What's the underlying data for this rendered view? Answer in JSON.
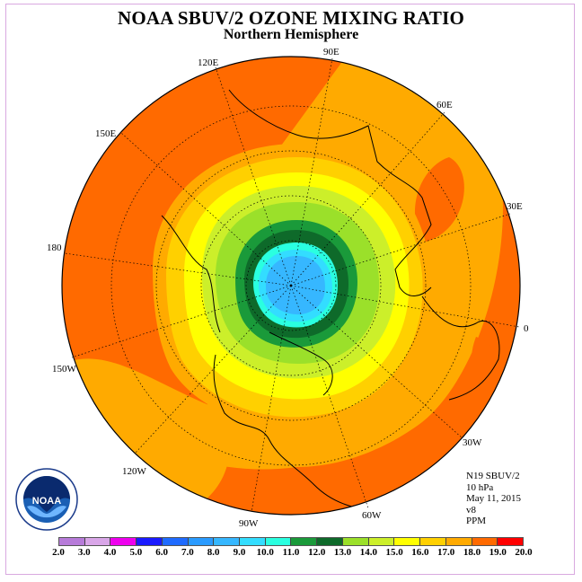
{
  "title": "NOAA SBUV/2 OZONE MIXING RATIO",
  "subtitle": "Northern Hemisphere",
  "longitude_labels": {
    "90E": "90E",
    "60E": "60E",
    "30E": "30E",
    "0": "0",
    "30W": "30W",
    "60W": "60W",
    "90W": "90W",
    "120W": "120W",
    "150W": "150W",
    "180": "180",
    "150E": "150E",
    "120E": "120E"
  },
  "info": {
    "satellite": "N19 SBUV/2",
    "level": "10 hPa",
    "date": "May 11, 2015",
    "version": "v8",
    "units": "PPM"
  },
  "logo": {
    "name": "noaa-logo",
    "text": "NOAA"
  },
  "colorbar": {
    "ticks": [
      "2.0",
      "3.0",
      "4.0",
      "5.0",
      "6.0",
      "7.0",
      "8.0",
      "9.0",
      "10.0",
      "11.0",
      "12.0",
      "13.0",
      "14.0",
      "15.0",
      "16.0",
      "17.0",
      "18.0",
      "19.0",
      "20.0"
    ],
    "colors": [
      "#b77bd9",
      "#d9a6e8",
      "#ee00ee",
      "#1a1aff",
      "#1f6bff",
      "#2a9bff",
      "#36b7ff",
      "#33ddff",
      "#2affe0",
      "#1a9a3a",
      "#0e6a2a",
      "#9be02a",
      "#ccef2a",
      "#ffff00",
      "#ffd000",
      "#ffaa00",
      "#ff6a00",
      "#ff0000",
      "#8a4a2a"
    ]
  },
  "map_data": {
    "field": "ozone mixing ratio",
    "units": "PPM",
    "level_hpa": 10,
    "projection": "north-polar-stereographic",
    "minimum_region": "polar (near 85-90N), ~8-9 PPM",
    "maximum_region": "subtropics / lower latitudes, ~17-18 PPM"
  }
}
